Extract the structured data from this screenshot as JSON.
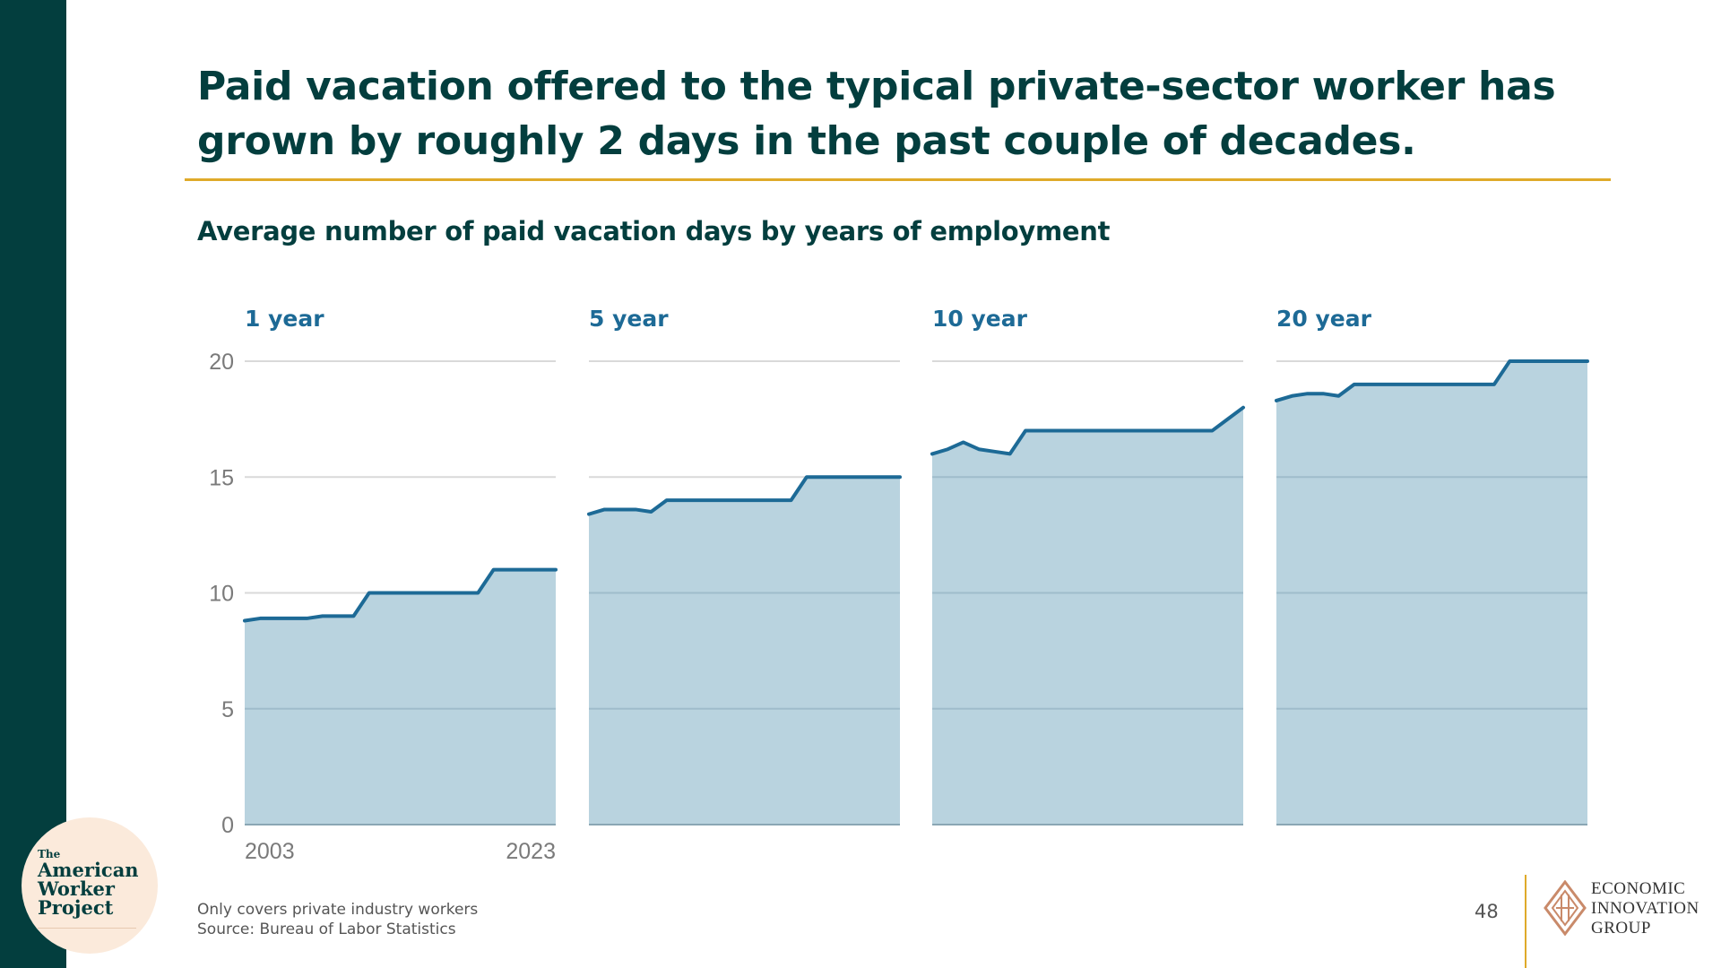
{
  "headline": "Paid vacation offered to the typical private-sector worker has grown by roughly 2 days in the past couple of decades.",
  "subtitle": "Average number of paid vacation days by years of employment",
  "chart_data": {
    "type": "area",
    "title": "Average number of paid vacation days by years of employment",
    "x": [
      2003,
      2004,
      2005,
      2006,
      2007,
      2008,
      2009,
      2010,
      2011,
      2012,
      2013,
      2014,
      2015,
      2016,
      2017,
      2018,
      2019,
      2020,
      2021,
      2022,
      2023
    ],
    "x_tick_labels": [
      "2003",
      "2023"
    ],
    "y_ticks": [
      0,
      5,
      10,
      15,
      20
    ],
    "ylim": [
      0,
      20
    ],
    "grid": true,
    "series": [
      {
        "name": "1 year",
        "values": [
          8.8,
          8.9,
          8.9,
          8.9,
          8.9,
          9.0,
          9.0,
          9.0,
          10,
          10,
          10,
          10,
          10,
          10,
          10,
          10,
          11,
          11,
          11,
          11,
          11
        ]
      },
      {
        "name": "5 year",
        "values": [
          13.4,
          13.6,
          13.6,
          13.6,
          13.5,
          14,
          14,
          14,
          14,
          14,
          14,
          14,
          14,
          14,
          15,
          15,
          15,
          15,
          15,
          15,
          15
        ]
      },
      {
        "name": "10 year",
        "values": [
          16.0,
          16.2,
          16.5,
          16.2,
          16.1,
          16.0,
          17,
          17,
          17,
          17,
          17,
          17,
          17,
          17,
          17,
          17,
          17,
          17,
          17,
          17.5,
          18
        ]
      },
      {
        "name": "20 year",
        "values": [
          18.3,
          18.5,
          18.6,
          18.6,
          18.5,
          19,
          19,
          19,
          19,
          19,
          19,
          19,
          19,
          19,
          19,
          20,
          20,
          20,
          20,
          20,
          20
        ]
      }
    ],
    "colors": {
      "line": "#1d6a96",
      "fill": "#b9d3df"
    }
  },
  "footnote": {
    "line1": "Only covers private industry workers",
    "line2": "Source: Bureau of Labor Statistics"
  },
  "page_number": "48",
  "logo_awp": {
    "the": "The",
    "line1": "American",
    "line2": "Worker",
    "line3": "Project"
  },
  "logo_eig": {
    "line1": "ECONOMIC",
    "line2": "INNOVATION",
    "line3": "GROUP"
  },
  "colors": {
    "accent_dark": "#033e3e",
    "accent_gold": "#dfaa2a"
  }
}
